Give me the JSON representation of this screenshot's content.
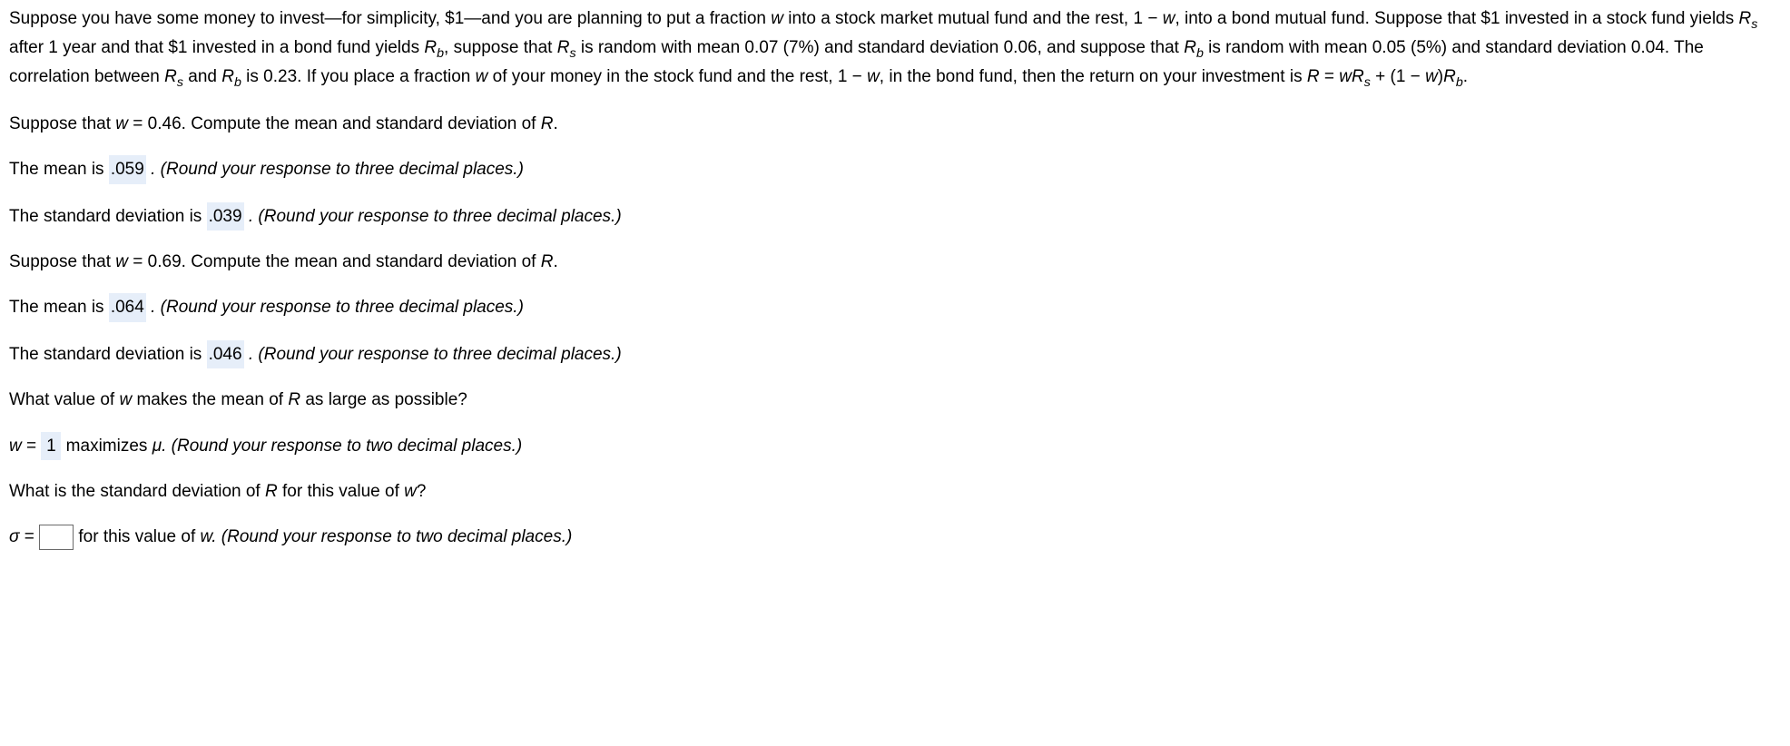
{
  "problem": {
    "intro1": "Suppose you have some money to invest—for simplicity, $1—and you are planning to put a fraction ",
    "w": "w",
    "intro2": " into a stock market mutual fund and the rest, 1 −  ",
    "intro3": ", into a bond mutual fund. Suppose that $1 invested in a stock fund yields ",
    "Rs": "R",
    "s": "s",
    "intro4": " after 1 year and that $1 invested in a bond fund yields ",
    "Rb": "R",
    "b": "b",
    "intro5": ", suppose that ",
    "intro6": " is random with mean 0.07 (7%) and standard deviation 0.06, and suppose that ",
    "intro7": " is random with mean 0.05 (5%) and standard deviation 0.04. The correlation between ",
    "intro8": " and ",
    "intro9": " is 0.23. If you place a fraction ",
    "intro10": " of your money in the stock fund and the rest, 1 −  ",
    "intro11": ", in the bond fund, then the return on your investment is ",
    "formula1": "R",
    "formula2": " = ",
    "formula3": "w",
    "formula4": " + (1 − ",
    "formula5": ")",
    "dot": "."
  },
  "q1": {
    "prompt1": "Suppose that ",
    "w_eq": "w",
    "prompt2": " = 0.46. Compute the mean and standard deviation of ",
    "R": "R",
    "mean_label": "The mean is ",
    "mean_val": ".059",
    "hint3": " . (Round your response to three decimal places.)",
    "sd_label": "The standard deviation is ",
    "sd_val": ".039"
  },
  "q2": {
    "prompt1": "Suppose that ",
    "w_eq": "w",
    "prompt2": " = 0.69. Compute the mean and standard deviation of ",
    "R": "R",
    "mean_label": "The mean is ",
    "mean_val": ".064",
    "hint3": " . (Round your response to three decimal places.)",
    "sd_label": "The standard deviation is ",
    "sd_val": ".046"
  },
  "q3": {
    "prompt": "What value of ",
    "w": "w",
    "prompt2": " makes the mean of ",
    "R": "R",
    "prompt3": " as large as possible?",
    "ans_pre": "w",
    "ans_eq": " = ",
    "ans_val": "1",
    "ans_post": " maximizes ",
    "mu": "μ",
    "hint2": ". (Round your response to two decimal places.)"
  },
  "q4": {
    "prompt": "What is the standard deviation of ",
    "R": "R",
    "prompt2": " for this value of ",
    "w": "w",
    "prompt3": "?",
    "sigma": "σ",
    "eq": " = ",
    "post": " for this value of ",
    "hint": ". (Round your response to two decimal places.)"
  }
}
